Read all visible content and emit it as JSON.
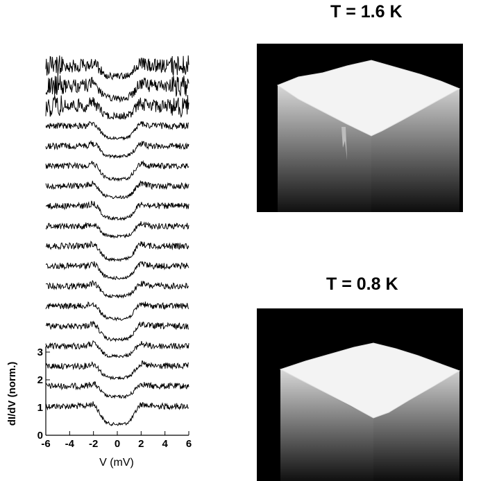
{
  "colors": {
    "background": "#ffffff",
    "trace": "#000000",
    "map_background": "#000000",
    "map_surface": "#f2f2f2"
  },
  "chart_data": [
    {
      "type": "line",
      "description_of_series": "stacked dI/dV spectra, each offset vertically",
      "xlabel": "V (mV)",
      "ylabel": "dI/dV (norm.)",
      "xlim": [
        -6,
        6
      ],
      "ylim": [
        0,
        3.5
      ],
      "x_ticks": [
        "-6",
        "-4",
        "-2",
        "0",
        "2",
        "4",
        "6"
      ],
      "y_ticks": [
        "0",
        "1",
        "2",
        "3"
      ],
      "grid": false,
      "legend": "none",
      "trace_count": 18,
      "gap_half_width_mV": 1.6,
      "noise_level": 0.1
    },
    {
      "type": "heatmap",
      "title": "T = 1.6 K",
      "style": "3D surface map"
    },
    {
      "type": "heatmap",
      "title": "T = 0.8 K",
      "style": "3D surface map"
    }
  ]
}
